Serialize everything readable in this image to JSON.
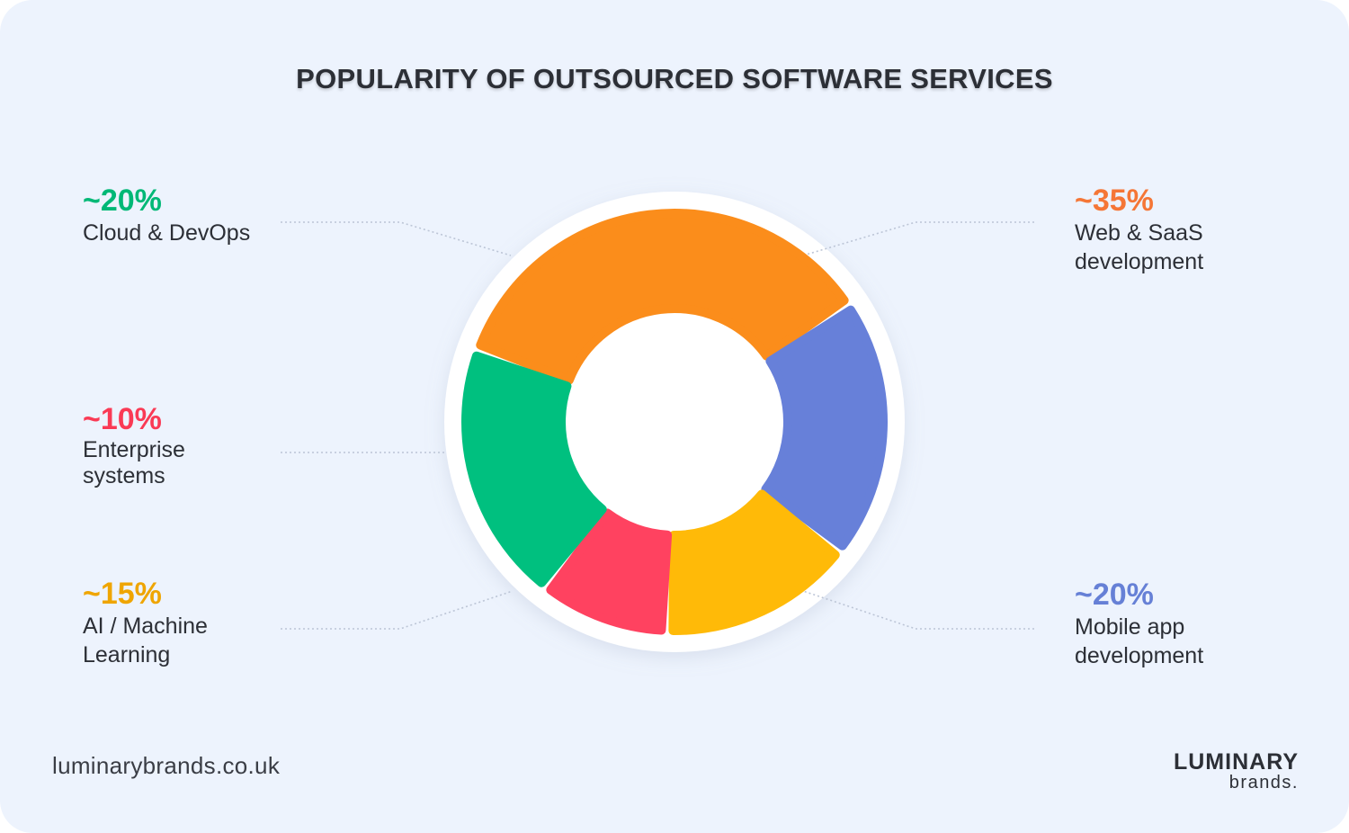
{
  "header": {
    "title": "POPULARITY OF OUTSOURCED SOFTWARE SERVICES"
  },
  "chart_data": {
    "type": "pie",
    "title": "POPULARITY OF OUTSOURCED SOFTWARE SERVICES",
    "slices": [
      {
        "label": "Web & SaaS development",
        "value": 35,
        "display": "~35%",
        "color": "#fb8d1b",
        "text_color": "#f57636"
      },
      {
        "label": "Mobile app development",
        "value": 20,
        "display": "~20%",
        "color": "#6780d9",
        "text_color": "#6680d6"
      },
      {
        "label": "AI / Machine Learning",
        "value": 15,
        "display": "~15%",
        "color": "#ffba08",
        "text_color": "#efa500"
      },
      {
        "label": "Enterprise systems",
        "value": 10,
        "display": "~10%",
        "color": "#ff4260",
        "text_color": "#fa3a55"
      },
      {
        "label": "Cloud & DevOps",
        "value": 20,
        "display": "~20%",
        "color": "#00c07f",
        "text_color": "#00b876"
      }
    ]
  },
  "labels": {
    "web": {
      "pct": "~35%",
      "line1": "Web & SaaS",
      "line2": "development"
    },
    "mobile": {
      "pct": "~20%",
      "line1": "Mobile app",
      "line2": "development"
    },
    "ai": {
      "pct": "~15%",
      "line1": "AI / Machine",
      "line2": "Learning"
    },
    "enterprise": {
      "pct": "~10%",
      "line1": "Enterprise",
      "line2": "systems"
    },
    "cloud": {
      "pct": "~20%",
      "line1": "Cloud & DevOps"
    }
  },
  "footer": {
    "url": "luminarybrands.co.uk",
    "brand_line1": "LUMINARY",
    "brand_line2": "brands."
  }
}
